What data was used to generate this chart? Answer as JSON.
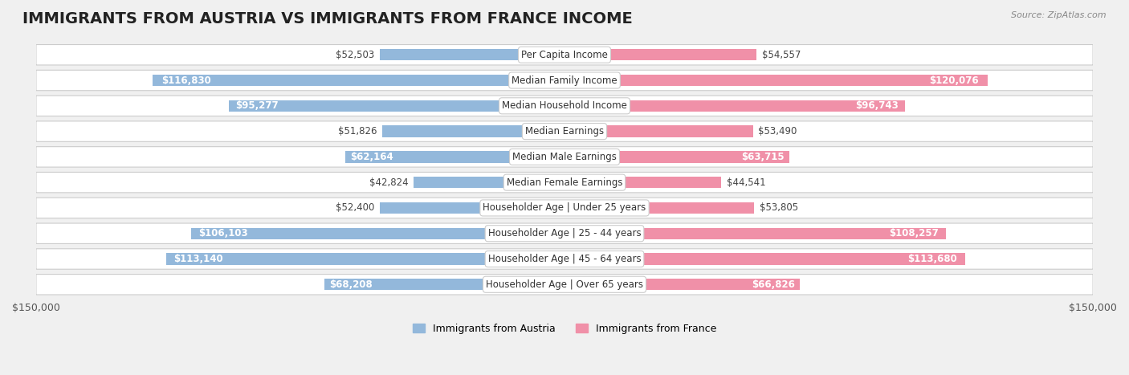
{
  "title": "IMMIGRANTS FROM AUSTRIA VS IMMIGRANTS FROM FRANCE INCOME",
  "source": "Source: ZipAtlas.com",
  "categories": [
    "Per Capita Income",
    "Median Family Income",
    "Median Household Income",
    "Median Earnings",
    "Median Male Earnings",
    "Median Female Earnings",
    "Householder Age | Under 25 years",
    "Householder Age | 25 - 44 years",
    "Householder Age | 45 - 64 years",
    "Householder Age | Over 65 years"
  ],
  "austria_values": [
    52503,
    116830,
    95277,
    51826,
    62164,
    42824,
    52400,
    106103,
    113140,
    68208
  ],
  "france_values": [
    54557,
    120076,
    96743,
    53490,
    63715,
    44541,
    53805,
    108257,
    113680,
    66826
  ],
  "austria_color": "#93b8db",
  "france_color": "#f090a8",
  "austria_label": "Immigrants from Austria",
  "france_label": "Immigrants from France",
  "max_value": 150000,
  "background_color": "#f0f0f0",
  "row_bg_color": "#ffffff",
  "label_bg_color": "#ffffff",
  "title_fontsize": 14,
  "axis_label_fontsize": 9,
  "value_fontsize": 8.5,
  "category_fontsize": 8.5
}
